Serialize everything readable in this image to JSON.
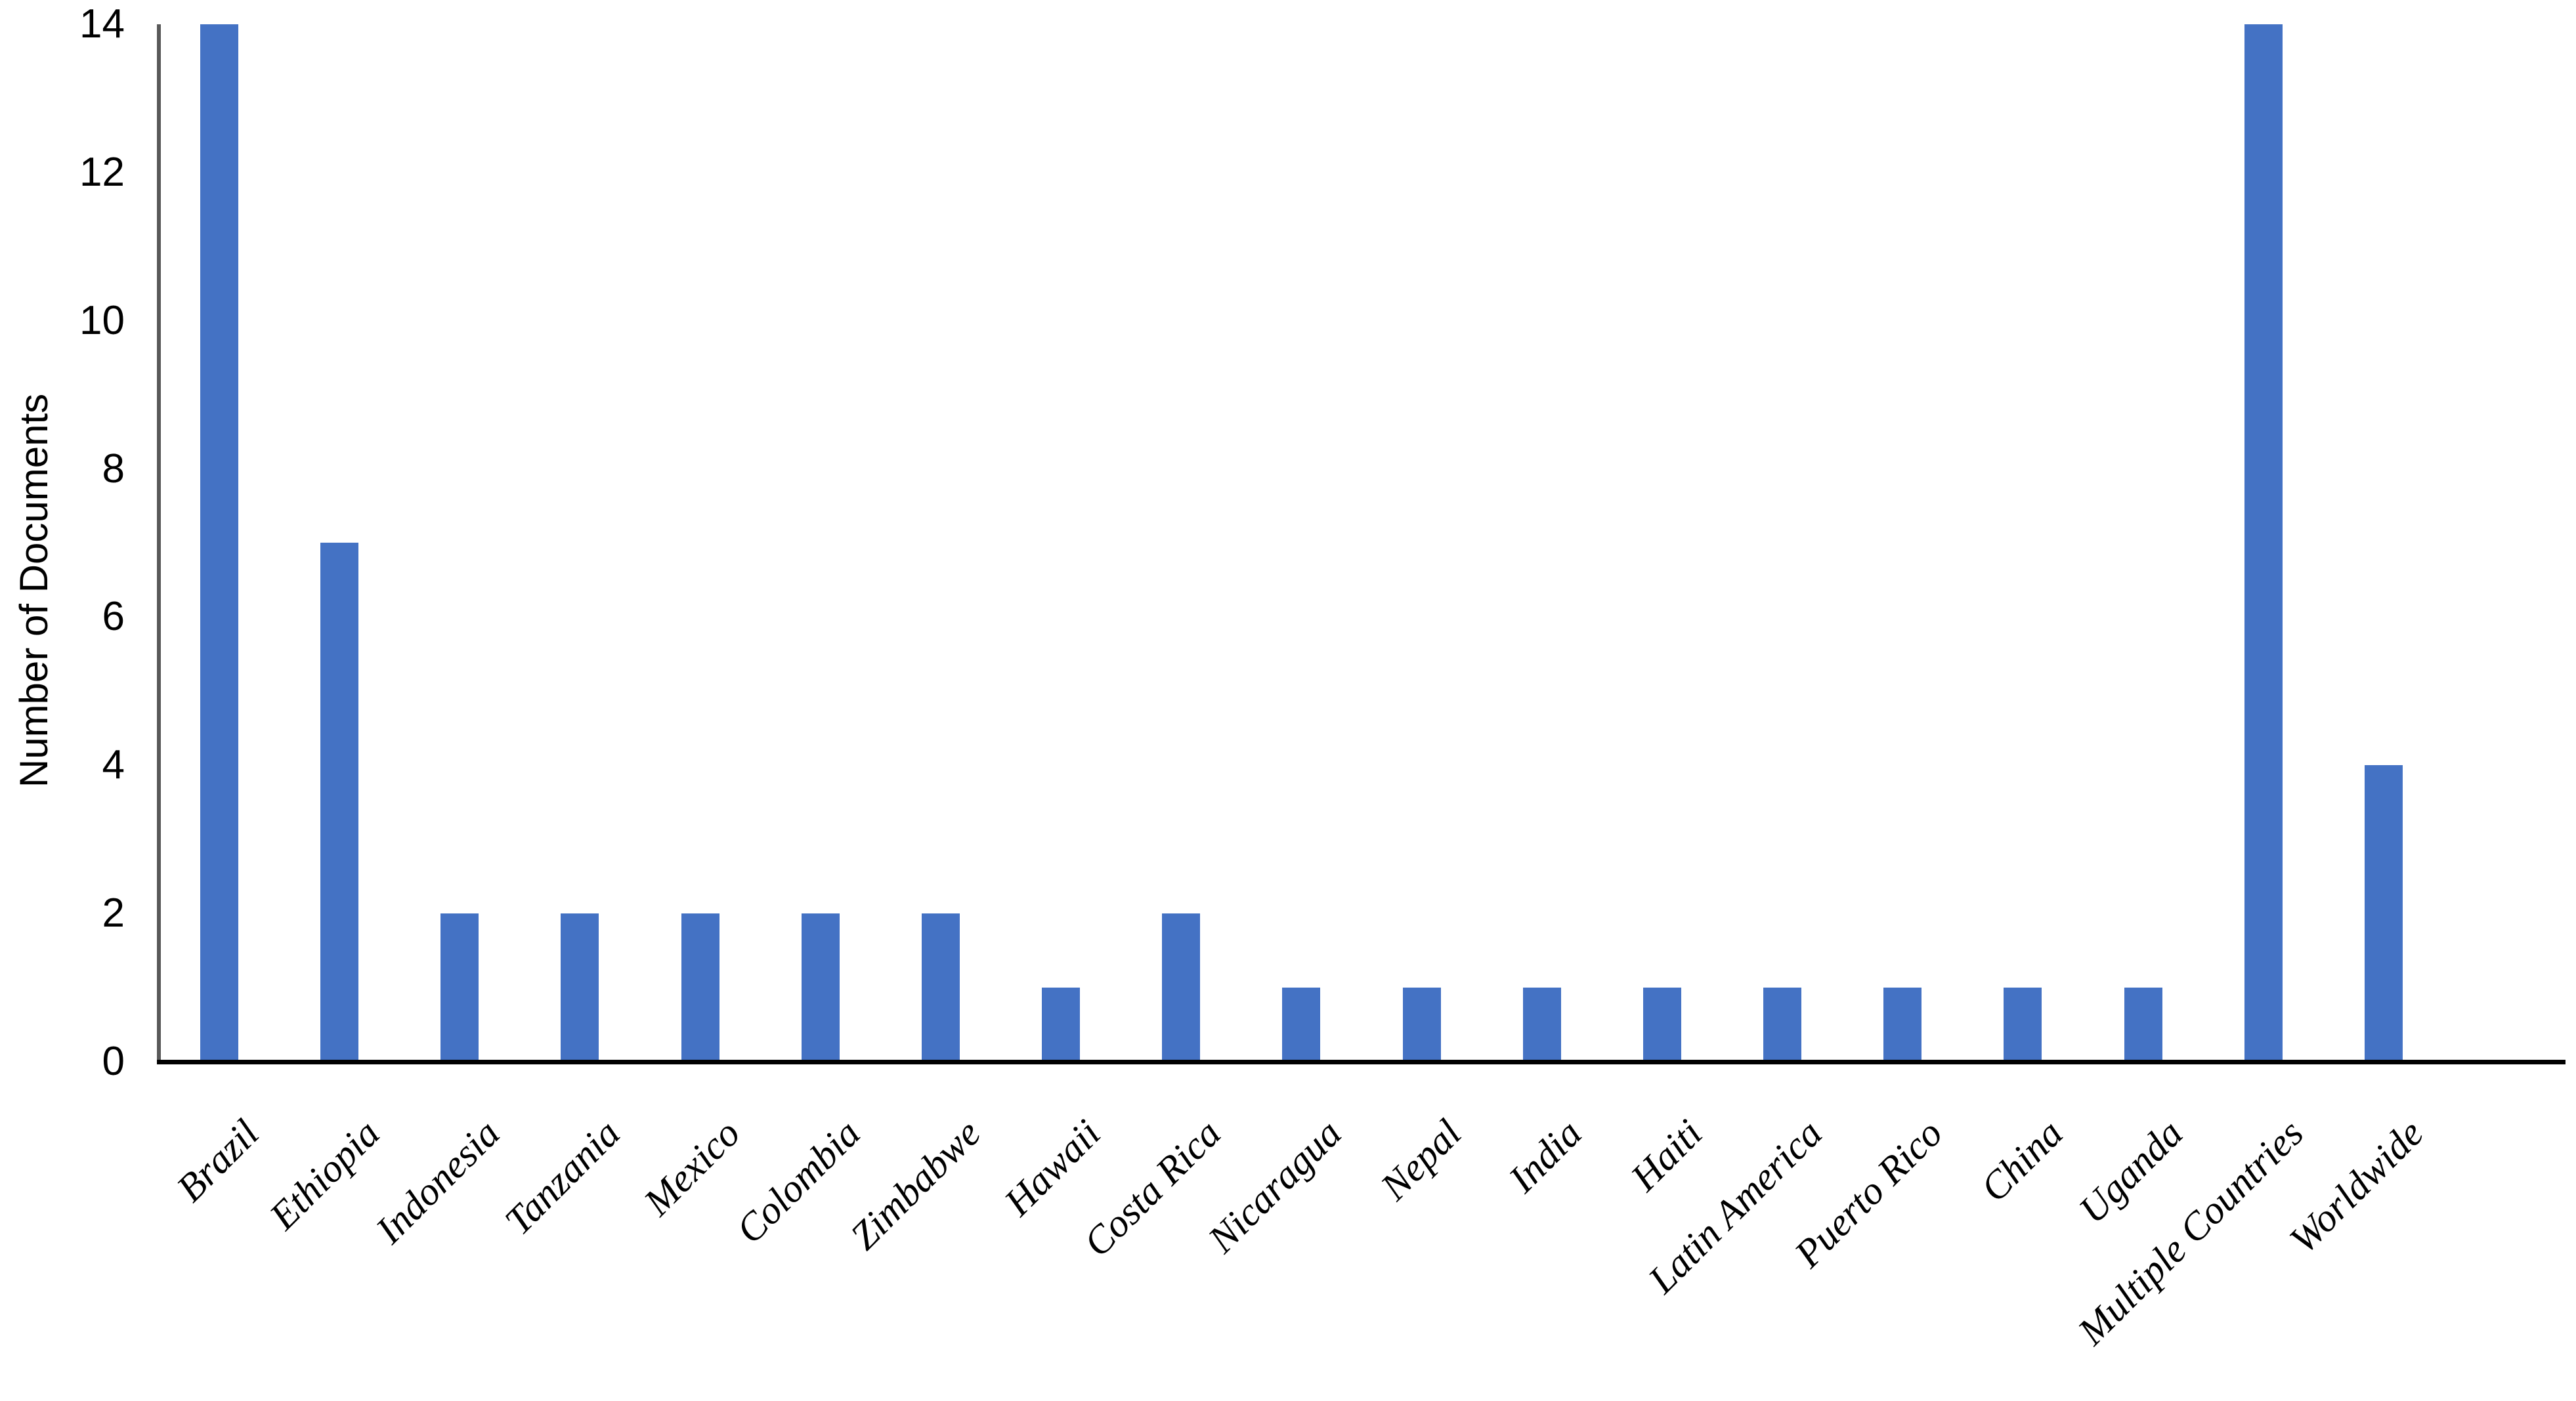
{
  "chart_data": {
    "type": "bar",
    "title": "",
    "xlabel": "",
    "ylabel": "Number of Documents",
    "categories": [
      "Brazil",
      "Ethiopia",
      "Indonesia",
      "Tanzania",
      "Mexico",
      "Colombia",
      "Zimbabwe",
      "Hawaii",
      "Costa Rica",
      "Nicaragua",
      "Nepal",
      "India",
      "Haiti",
      "Latin America",
      "Puerto Rico",
      "China",
      "Uganda",
      "Multiple Countries",
      "Worldwide"
    ],
    "values": [
      14,
      7,
      2,
      2,
      2,
      2,
      2,
      1,
      2,
      1,
      1,
      1,
      1,
      1,
      1,
      1,
      1,
      14,
      4
    ],
    "ylim": [
      0,
      14
    ],
    "yticks": [
      0,
      2,
      4,
      6,
      8,
      10,
      12,
      14
    ],
    "grid": false,
    "legend_position": "none",
    "bar_color": "#4472C4",
    "x_axis_color": "#000000",
    "y_axis_color": "#595959",
    "text_color": "#000000"
  }
}
